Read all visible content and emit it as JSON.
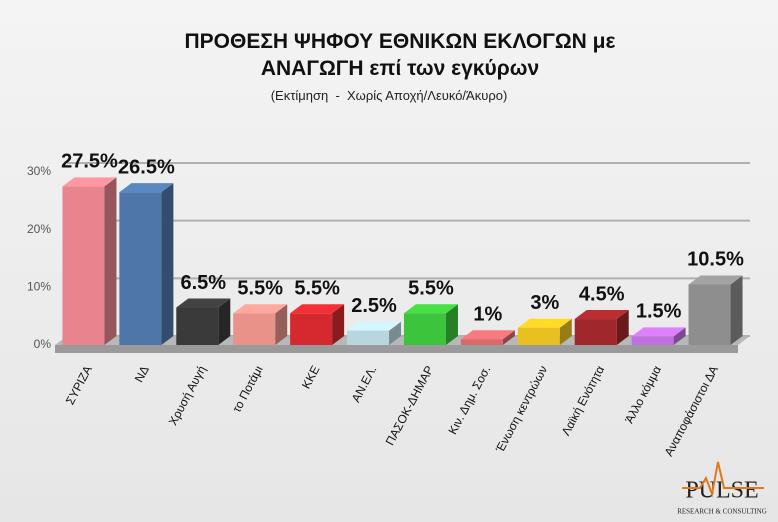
{
  "chart_data": {
    "type": "bar3d",
    "title": "ΠΡΟΘΕΣΗ ΨΗΦΟΥ ΕΘΝΙΚΩΝ ΕΚΛΟΓΩΝ με ΑΝΑΓΩΓΗ επί των εγκύρων",
    "subtitle": "(Εκτίμηση  -  Χωρίς Αποχή/Λευκό/Άκυρο)",
    "categories": [
      "ΣΥΡΙΖΑ",
      "ΝΔ",
      "Χρυσή Αυγή",
      "το Ποτάμι",
      "ΚΚΕ",
      "ΑΝ.ΕΛ.",
      "ΠΑΣΟΚ-ΔΗΜΑΡ",
      "Κιν. Δημ. Σοσ.",
      "Ένωση κεντρώων",
      "Λαϊκή Ενότητα",
      "Άλλο κόμμα",
      "Αναποφάσιστοι ΔΑ"
    ],
    "values": [
      27.5,
      26.5,
      6.5,
      5.5,
      5.5,
      2.5,
      5.5,
      1,
      3,
      4.5,
      1.5,
      10.5
    ],
    "value_labels": [
      "27.5%",
      "26.5%",
      "6.5%",
      "5.5%",
      "5.5%",
      "2.5%",
      "5.5%",
      "1%",
      "3%",
      "4.5%",
      "1.5%",
      "10.5%"
    ],
    "colors": [
      "#e8848e",
      "#4f76a8",
      "#3a3a3a",
      "#e8928a",
      "#d42a2f",
      "#b8d6de",
      "#3cc43c",
      "#d86a6e",
      "#e8c020",
      "#a0282c",
      "#c070e0",
      "#8e8e8e"
    ],
    "ylim": [
      0,
      30
    ],
    "yticks": [
      {
        "value": 0,
        "label": "0%"
      },
      {
        "value": 10,
        "label": "10%"
      },
      {
        "value": 20,
        "label": "20%"
      },
      {
        "value": 30,
        "label": "30%"
      }
    ],
    "grid": true,
    "logo": {
      "name": "PULSE",
      "tagline": "RESEARCH & CONSULTING"
    }
  }
}
